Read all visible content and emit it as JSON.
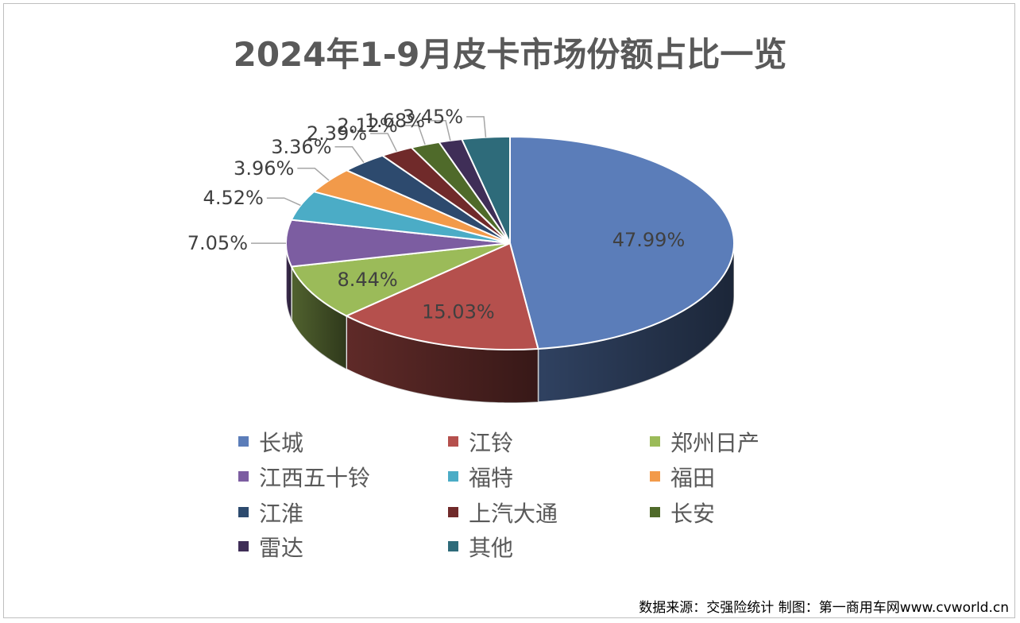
{
  "chart_data": {
    "type": "pie",
    "title": "2024年1-9月皮卡市场份额占比一览",
    "slices": [
      {
        "name": "长城",
        "value": 47.99,
        "label": "47.99%",
        "color": "#5B7DB9"
      },
      {
        "name": "江铃",
        "value": 15.03,
        "label": "15.03%",
        "color": "#B5504D"
      },
      {
        "name": "郑州日产",
        "value": 8.44,
        "label": "8.44%",
        "color": "#9BBB59"
      },
      {
        "name": "江西五十铃",
        "value": 7.05,
        "label": "7.05%",
        "color": "#7C5DA1"
      },
      {
        "name": "福特",
        "value": 4.52,
        "label": "4.52%",
        "color": "#4BACC6"
      },
      {
        "name": "福田",
        "value": 3.96,
        "label": "3.96%",
        "color": "#F29A4A"
      },
      {
        "name": "江淮",
        "value": 3.36,
        "label": "3.36%",
        "color": "#2D4A6E"
      },
      {
        "name": "上汽大通",
        "value": 2.39,
        "label": "2.39%",
        "color": "#702A2A"
      },
      {
        "name": "长安",
        "value": 2.12,
        "label": "2.12%",
        "color": "#4F6A2A"
      },
      {
        "name": "雷达",
        "value": 1.68,
        "label": "1.68%",
        "color": "#3F2E57"
      },
      {
        "name": "其他",
        "value": 3.45,
        "label": "3.45%",
        "color": "#2E6B7A"
      }
    ],
    "legend_position": "bottom"
  },
  "source": "数据来源：交强险统计 制图：第一商用车网www.cvworld.cn"
}
